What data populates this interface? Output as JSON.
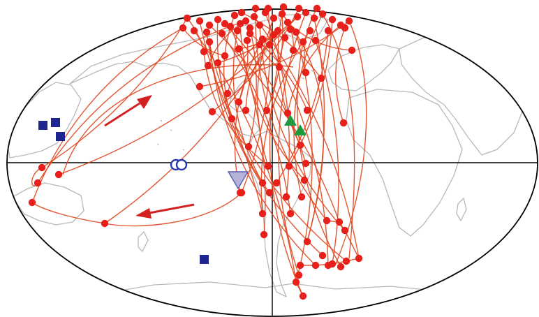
{
  "map": {
    "projection": "mollweide-world",
    "colors": {
      "background": "#ffffff",
      "coastline": "#b8b8b8",
      "outline": "#000000",
      "axes": "#000000",
      "route": "#e0441c",
      "route_point": "#e8201c",
      "arrow": "#d42020",
      "square": "#1f2590",
      "triangle_up": "#1e9a3c",
      "triangle_down": "#b4b4d8",
      "circle_marker": "#2a37b0"
    },
    "icons": {
      "direction_arrows": "arrow-icon",
      "site_squares": "square-marker-icon",
      "site_triangles_up": "triangle-up-marker-icon",
      "site_triangle_down": "triangle-down-marker-icon",
      "site_circles": "ring-marker-icon"
    }
  }
}
